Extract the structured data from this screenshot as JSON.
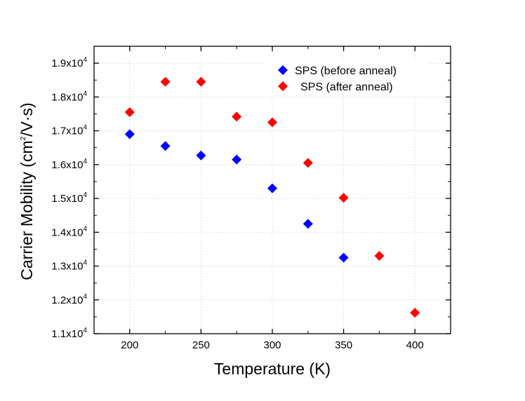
{
  "chart_data": {
    "type": "scatter",
    "title": "",
    "xlabel": "Temperature (K)",
    "ylabel": {
      "main": "Carrier Mobility (cm",
      "sup": "2",
      "tail": "/V·s)"
    },
    "xlim": [
      175,
      425
    ],
    "ylim": [
      11000,
      19500
    ],
    "x_ticks": [
      {
        "value": 200,
        "label": "200"
      },
      {
        "value": 250,
        "label": "250"
      },
      {
        "value": 300,
        "label": "300"
      },
      {
        "value": 350,
        "label": "350"
      },
      {
        "value": 400,
        "label": "400"
      }
    ],
    "y_ticks": [
      {
        "value": 11000,
        "base": "1.1x10",
        "exp": "4"
      },
      {
        "value": 12000,
        "base": "1.2x10",
        "exp": "4"
      },
      {
        "value": 13000,
        "base": "1.3x10",
        "exp": "4"
      },
      {
        "value": 14000,
        "base": "1.4x10",
        "exp": "4"
      },
      {
        "value": 15000,
        "base": "1.5x10",
        "exp": "4"
      },
      {
        "value": 16000,
        "base": "1.6x10",
        "exp": "4"
      },
      {
        "value": 17000,
        "base": "1.7x10",
        "exp": "4"
      },
      {
        "value": 18000,
        "base": "1.8x10",
        "exp": "4"
      },
      {
        "value": 19000,
        "base": "1.9x10",
        "exp": "4"
      }
    ],
    "grid": true,
    "legend_position": "top-right",
    "series": [
      {
        "name": "SPS (before anneal)",
        "color": "#0000ff",
        "marker": "diamond",
        "x": [
          200,
          225,
          250,
          275,
          300,
          325,
          350
        ],
        "y": [
          16900,
          16550,
          16270,
          16150,
          15300,
          14250,
          13250
        ]
      },
      {
        "name": "SPS (after anneal)",
        "color": "#ff0000",
        "marker": "diamond",
        "x": [
          200,
          225,
          250,
          275,
          300,
          325,
          350,
          375,
          400
        ],
        "y": [
          17550,
          18450,
          18450,
          17420,
          17250,
          16050,
          15020,
          13300,
          11620
        ]
      }
    ]
  }
}
